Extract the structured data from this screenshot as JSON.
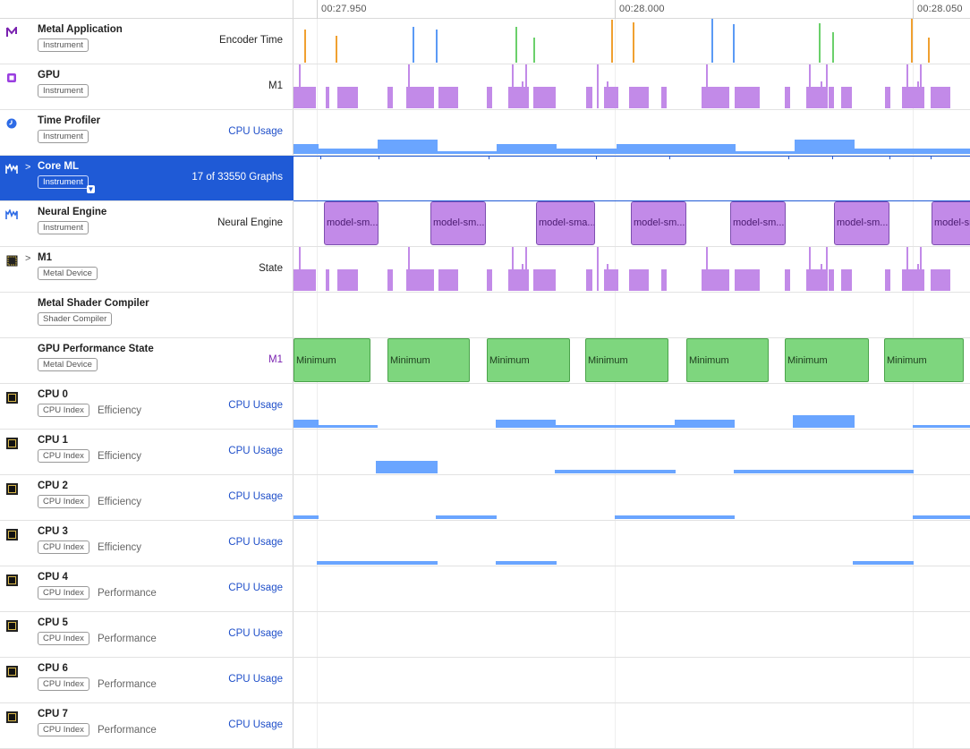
{
  "ruler": {
    "ticks": [
      "00:27.950",
      "00:28.000",
      "00:28.050"
    ]
  },
  "colors": {
    "selection": "#1f5ad6",
    "cpu_usage": "#6aa5ff",
    "gpu": "#c28ae8",
    "perf_state": "#7ed67e",
    "link": "#1f4fc9"
  },
  "rows": [
    {
      "name": "Metal Application",
      "badge": "Instrument",
      "sub": "",
      "right": "Encoder Time",
      "icon": "metal-app-icon"
    },
    {
      "name": "GPU",
      "badge": "Instrument",
      "sub": "",
      "right": "M1",
      "icon": "gpu-icon"
    },
    {
      "name": "Time Profiler",
      "badge": "Instrument",
      "sub": "",
      "right": "CPU Usage",
      "icon": "time-profiler-icon"
    },
    {
      "name": "Core ML",
      "badge": "Instrument",
      "sub": "",
      "right": "17 of 33550 Graphs",
      "icon": "core-ml-icon"
    },
    {
      "name": "Neural Engine",
      "badge": "Instrument",
      "sub": "",
      "right": "Neural Engine",
      "icon": "neural-engine-icon"
    },
    {
      "name": "M1",
      "badge": "Metal Device",
      "sub": "",
      "right": "State",
      "icon": "metal-device-icon"
    },
    {
      "name": "Metal Shader Compiler",
      "badge": "Shader Compiler",
      "sub": "",
      "right": "",
      "icon": ""
    },
    {
      "name": "GPU Performance State",
      "badge": "Metal Device",
      "sub": "",
      "right": "M1",
      "icon": ""
    },
    {
      "name": "CPU 0",
      "badge": "CPU Index",
      "sub": "Efficiency",
      "right": "CPU Usage",
      "icon": "cpu-icon"
    },
    {
      "name": "CPU 1",
      "badge": "CPU Index",
      "sub": "Efficiency",
      "right": "CPU Usage",
      "icon": "cpu-icon"
    },
    {
      "name": "CPU 2",
      "badge": "CPU Index",
      "sub": "Efficiency",
      "right": "CPU Usage",
      "icon": "cpu-icon"
    },
    {
      "name": "CPU 3",
      "badge": "CPU Index",
      "sub": "Efficiency",
      "right": "CPU Usage",
      "icon": "cpu-icon"
    },
    {
      "name": "CPU 4",
      "badge": "CPU Index",
      "sub": "Performance",
      "right": "CPU Usage",
      "icon": "cpu-icon"
    },
    {
      "name": "CPU 5",
      "badge": "CPU Index",
      "sub": "Performance",
      "right": "CPU Usage",
      "icon": "cpu-icon"
    },
    {
      "name": "CPU 6",
      "badge": "CPU Index",
      "sub": "Performance",
      "right": "CPU Usage",
      "icon": "cpu-icon"
    },
    {
      "name": "CPU 7",
      "badge": "CPU Index",
      "sub": "Performance",
      "right": "CPU Usage",
      "icon": "cpu-icon"
    }
  ],
  "neural_engine_label": "model-sm...",
  "neural_engine_labels": [
    "model-sm...",
    "model-sm...",
    "model-sma...",
    "model-sm...",
    "model-sm...",
    "model-sm...",
    "model-sm"
  ],
  "perf_state_label": "Minimum"
}
